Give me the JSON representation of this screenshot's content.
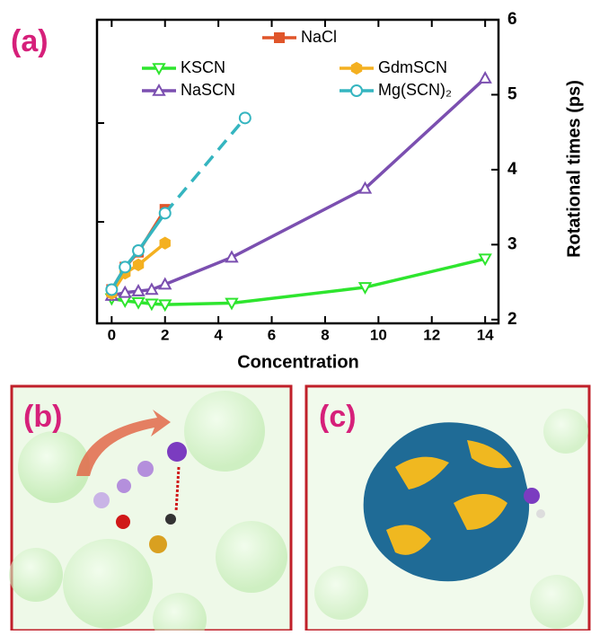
{
  "chart_data": {
    "type": "line",
    "panel_labels": [
      "(a)",
      "(b)",
      "(c)"
    ],
    "xlabel": "Concentration",
    "ylabel": "Rotational times (ps)",
    "xlim": [
      -0.55,
      14.5
    ],
    "ylim": [
      1.95,
      6
    ],
    "xticks": [
      0,
      2,
      4,
      6,
      8,
      10,
      12,
      14
    ],
    "yticks": [
      2,
      3,
      4,
      5,
      6
    ],
    "series": [
      {
        "name": "KSCN",
        "color": "#2ee52e",
        "marker": "tri-down",
        "x": [
          0,
          0.5,
          1,
          1.5,
          2,
          4.5,
          9.5,
          14
        ],
        "values": [
          2.28,
          2.25,
          2.23,
          2.21,
          2.2,
          2.22,
          2.43,
          2.81
        ]
      },
      {
        "name": "NaSCN",
        "color": "#7b4fb0",
        "marker": "tri-up",
        "x": [
          0,
          0.5,
          1,
          1.5,
          2,
          4.5,
          9.5,
          14
        ],
        "values": [
          2.32,
          2.36,
          2.38,
          2.4,
          2.47,
          2.83,
          3.75,
          5.22
        ]
      },
      {
        "name": "NaCl",
        "color": "#e0552a",
        "marker": "square",
        "x": [
          0,
          0.5,
          1,
          2
        ],
        "values": [
          2.4,
          2.7,
          2.9,
          3.47
        ]
      },
      {
        "name": "GdmSCN",
        "color": "#f4b020",
        "marker": "hexagon",
        "x": [
          0,
          0.5,
          1,
          2
        ],
        "values": [
          2.35,
          2.62,
          2.73,
          3.02
        ]
      },
      {
        "name": "Mg(SCN)₂",
        "color": "#35b5c0",
        "marker": "circle",
        "dashed_tail": true,
        "x": [
          0,
          0.5,
          1,
          2,
          5
        ],
        "values": [
          2.4,
          2.7,
          2.92,
          3.42,
          4.69
        ]
      }
    ]
  }
}
